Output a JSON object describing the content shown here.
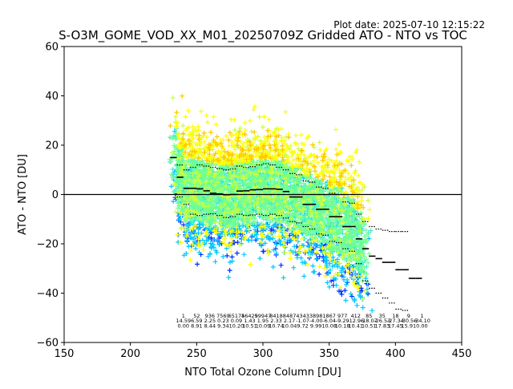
{
  "chart_data": {
    "type": "scatter",
    "title": "S-O3M_GOME_VOD_XX_M01_20250709Z Gridded ATO - NTO vs TOC",
    "plot_date": "Plot date: 2025-07-10 12:15:22",
    "xlabel": "NTO Total Ozone Column [DU]",
    "ylabel": "ATO - NTO [DU]",
    "xlim": [
      150,
      450
    ],
    "ylim": [
      -60,
      60
    ],
    "x_ticks": [
      150,
      200,
      250,
      300,
      350,
      400,
      450
    ],
    "y_ticks": [
      -60,
      -40,
      -20,
      0,
      20,
      40,
      60
    ],
    "x_tick_labels": [
      "150",
      "200",
      "250",
      "300",
      "350",
      "400",
      "450"
    ],
    "y_tick_labels": [
      "−60",
      "−40",
      "−20",
      "0",
      "20",
      "40",
      "60"
    ],
    "zero_line": 0,
    "marker": "+",
    "colors": {
      "scatter": [
        "#0030ff",
        "#00c8ff",
        "#40e8d0",
        "#70ff90",
        "#c8ff40",
        "#ffff00",
        "#ffc800"
      ],
      "median": "#000000"
    },
    "bin_width": 5,
    "bins": [
      {
        "x": 232.5,
        "median": 15.0,
        "p_low": null,
        "p_high": null
      },
      {
        "x": 237.5,
        "median": 7.0,
        "p_low": -1.0,
        "p_high": 12.0
      },
      {
        "x": 242.5,
        "median": 2.5,
        "p_low": -4.0,
        "p_high": 10.0
      },
      {
        "x": 247.5,
        "median": 2.5,
        "p_low": -8.0,
        "p_high": 11.0
      },
      {
        "x": 252.5,
        "median": 2.3,
        "p_low": -8.5,
        "p_high": 12.0
      },
      {
        "x": 257.5,
        "median": 1.5,
        "p_low": -8.0,
        "p_high": 11.5
      },
      {
        "x": 262.5,
        "median": 0.5,
        "p_low": -7.8,
        "p_high": 11.0
      },
      {
        "x": 267.5,
        "median": 0.2,
        "p_low": -8.5,
        "p_high": 10.5
      },
      {
        "x": 272.5,
        "median": -0.1,
        "p_low": -9.3,
        "p_high": 10.0
      },
      {
        "x": 277.5,
        "median": 0.0,
        "p_low": -9.0,
        "p_high": 10.3
      },
      {
        "x": 282.5,
        "median": 1.4,
        "p_low": -8.0,
        "p_high": 11.5
      },
      {
        "x": 287.5,
        "median": 1.5,
        "p_low": -8.5,
        "p_high": 11.0
      },
      {
        "x": 292.5,
        "median": 1.9,
        "p_low": -8.3,
        "p_high": 11.3
      },
      {
        "x": 297.5,
        "median": 2.0,
        "p_low": -8.0,
        "p_high": 12.0
      },
      {
        "x": 302.5,
        "median": 2.3,
        "p_low": -8.5,
        "p_high": 12.5
      },
      {
        "x": 307.5,
        "median": 2.3,
        "p_low": -8.0,
        "p_high": 12.0
      },
      {
        "x": 312.5,
        "median": 2.1,
        "p_low": -8.5,
        "p_high": 11.0
      },
      {
        "x": 317.5,
        "median": 1.2,
        "p_low": -9.5,
        "p_high": 10.0
      },
      {
        "x": 322.5,
        "median": -1.0,
        "p_low": -11.0,
        "p_high": 8.5
      },
      {
        "x": 327.5,
        "median": -1.0,
        "p_low": -11.5,
        "p_high": 8.0
      },
      {
        "x": 332.5,
        "median": -4.0,
        "p_low": -13.0,
        "p_high": 5.5
      },
      {
        "x": 337.5,
        "median": -4.0,
        "p_low": -14.0,
        "p_high": 5.0
      },
      {
        "x": 342.5,
        "median": -6.0,
        "p_low": -16.0,
        "p_high": 3.0
      },
      {
        "x": 347.5,
        "median": -6.0,
        "p_low": -16.5,
        "p_high": 2.5
      },
      {
        "x": 352.5,
        "median": -9.0,
        "p_low": -19.0,
        "p_high": 0.5
      },
      {
        "x": 357.5,
        "median": -9.0,
        "p_low": -19.5,
        "p_high": 0.0
      },
      {
        "x": 362.5,
        "median": -13.0,
        "p_low": -22.0,
        "p_high": -3.0
      },
      {
        "x": 367.5,
        "median": -13.0,
        "p_low": -23.0,
        "p_high": -3.5
      },
      {
        "x": 372.5,
        "median": -18.0,
        "p_low": -28.0,
        "p_high": -8.0
      },
      {
        "x": 377.5,
        "median": -22.0,
        "p_low": -35.0,
        "p_high": -11.0
      },
      {
        "x": 382.5,
        "median": -25.0,
        "p_low": -38.0,
        "p_high": -13.0
      },
      {
        "x": 387.5,
        "median": -26.0,
        "p_low": -40.0,
        "p_high": -14.0
      },
      {
        "x": 392.5,
        "median": -27.5,
        "p_low": -42.0,
        "p_high": -14.5
      },
      {
        "x": 397.5,
        "median": -27.5,
        "p_low": -44.0,
        "p_high": -15.0
      },
      {
        "x": 402.5,
        "median": -30.5,
        "p_low": -46.5,
        "p_high": -15.0
      },
      {
        "x": 407.5,
        "median": -30.5,
        "p_low": -47.0,
        "p_high": -15.0
      },
      {
        "x": 412.5,
        "median": -34.0,
        "p_low": null,
        "p_high": null
      },
      {
        "x": 417.5,
        "median": -34.0,
        "p_low": null,
        "p_high": null
      }
    ],
    "stats_columns": [
      {
        "x": 240,
        "count": "1",
        "mean": "14.59",
        "sd": "0.00"
      },
      {
        "x": 250,
        "count": "52",
        "mean": "6.59",
        "sd": "8.91"
      },
      {
        "x": 260,
        "count": "936",
        "mean": "2.25",
        "sd": "8.44"
      },
      {
        "x": 270,
        "count": "7560",
        "mean": "0.23",
        "sd": "9.34"
      },
      {
        "x": 280,
        "count": "65175",
        "mean": "0.09",
        "sd": "10.20"
      },
      {
        "x": 290,
        "count": "46425",
        "mean": "1.43",
        "sd": "10.51"
      },
      {
        "x": 300,
        "count": "99947",
        "mean": "1.95",
        "sd": "10.09"
      },
      {
        "x": 310,
        "count": "8418",
        "mean": "2.33",
        "sd": "10.74"
      },
      {
        "x": 320,
        "count": "8487",
        "mean": "2.17",
        "sd": "10.04"
      },
      {
        "x": 330,
        "count": "4343",
        "mean": "-1.07",
        "sd": "9.72"
      },
      {
        "x": 340,
        "count": "3898",
        "mean": "-4.00",
        "sd": "9.99"
      },
      {
        "x": 350,
        "count": "1867",
        "mean": "-6.04",
        "sd": "10.08"
      },
      {
        "x": 360,
        "count": "977",
        "mean": "-9.29",
        "sd": "10.18"
      },
      {
        "x": 370,
        "count": "412",
        "mean": "-12.96",
        "sd": "10.41"
      },
      {
        "x": 380,
        "count": "85",
        "mean": "-18.07",
        "sd": "10.51"
      },
      {
        "x": 390,
        "count": "35",
        "mean": "-26.53",
        "sd": "17.83"
      },
      {
        "x": 400,
        "count": "18",
        "mean": "-27.34",
        "sd": "17.45"
      },
      {
        "x": 410,
        "count": "9",
        "mean": "-30.56",
        "sd": "15.91"
      },
      {
        "x": 420,
        "count": "1",
        "mean": "-34.10",
        "sd": "0.00"
      }
    ]
  }
}
